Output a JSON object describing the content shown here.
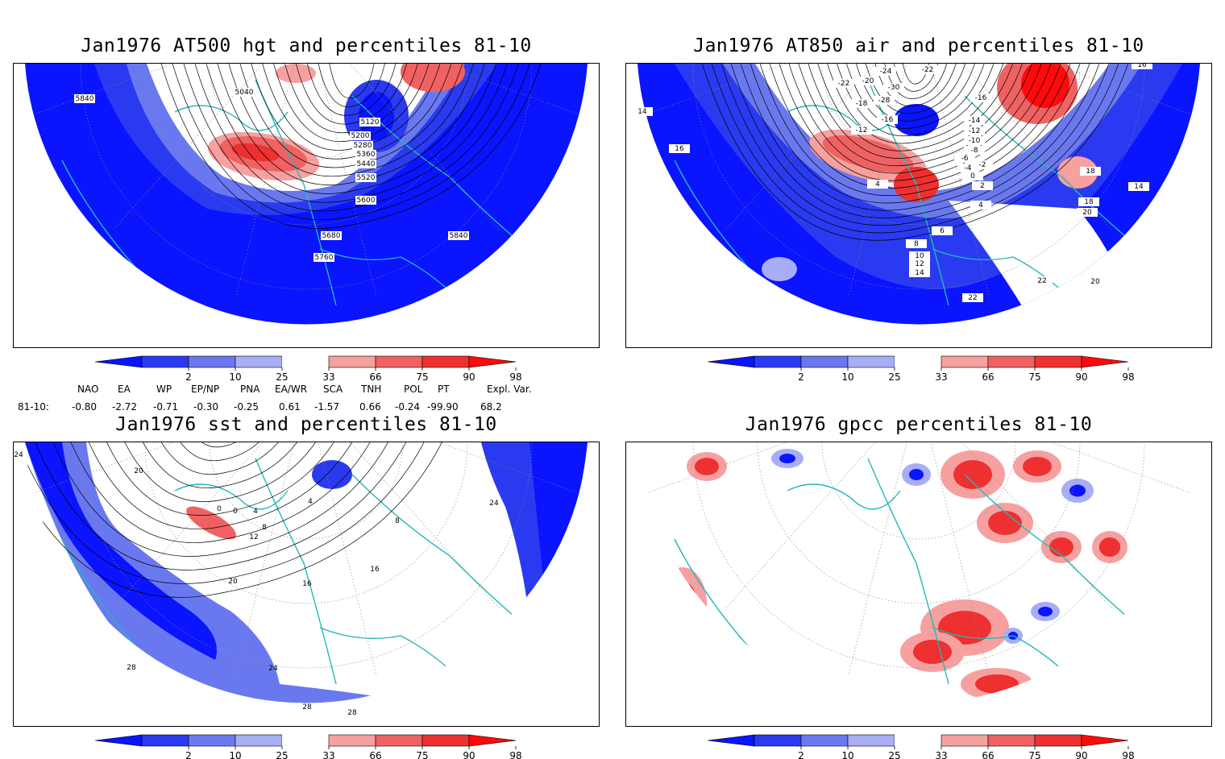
{
  "colors": {
    "below2": "#0a14ff",
    "p2_10": "#2a3af0",
    "p10_25": "#6a78f0",
    "p25_33": "#a8aef5",
    "neutral": "#ffffff",
    "p66_75": "#f7a0a0",
    "p75_90": "#f06262",
    "p90_98": "#ee3030",
    "above98": "#ff0a0a",
    "coast": "#22b8b8",
    "contour": "#000000",
    "grid": "#888888"
  },
  "colorbar": {
    "ticks": [
      "2",
      "10",
      "25",
      "33",
      "66",
      "75",
      "90",
      "98"
    ]
  },
  "panels": [
    {
      "id": "z500",
      "title": "Jan1976 AT500 hgt and percentiles 81-10",
      "contour_labels": [
        "5040",
        "5120",
        "5200",
        "5280",
        "5360",
        "5440",
        "5520",
        "5600",
        "5680",
        "5760",
        "5840",
        "5840"
      ]
    },
    {
      "id": "t850",
      "title": "Jan1976 AT850 air and percentiles 81-10",
      "contour_labels": [
        "-24",
        "-22",
        "-22",
        "-20",
        "-30",
        "-28",
        "-18",
        "-16",
        "-16",
        "-14",
        "-12",
        "-12",
        "-10",
        "-8",
        "-6",
        "-4",
        "-2",
        "0",
        "2",
        "4",
        "4",
        "6",
        "8",
        "10",
        "12",
        "14",
        "14",
        "14",
        "16",
        "16",
        "18",
        "18",
        "20",
        "20",
        "22",
        "22"
      ]
    },
    {
      "id": "sst",
      "title": "Jan1976 sst and percentiles 81-10",
      "contour_labels": [
        "24",
        "24",
        "20",
        "20",
        "0",
        "0",
        "4",
        "4",
        "8",
        "8",
        "12",
        "16",
        "16",
        "24",
        "28",
        "28",
        "28"
      ]
    },
    {
      "id": "gpcc",
      "title": "Jan1976 gpcc percentiles 81-10",
      "contour_labels": []
    }
  ],
  "indices": {
    "headers": [
      "NAO",
      "EA",
      "WP",
      "EP/NP",
      "PNA",
      "EA/WR",
      "SCA",
      "TNH",
      "POL",
      "PT",
      "Expl. Var."
    ],
    "row_label": "81-10:",
    "values": [
      "-0.80",
      "-2.72",
      "-0.71",
      "-0.30",
      "-0.25",
      "0.61",
      "-1.57",
      "0.66",
      "-0.24",
      "-99.90",
      "68.2"
    ]
  }
}
